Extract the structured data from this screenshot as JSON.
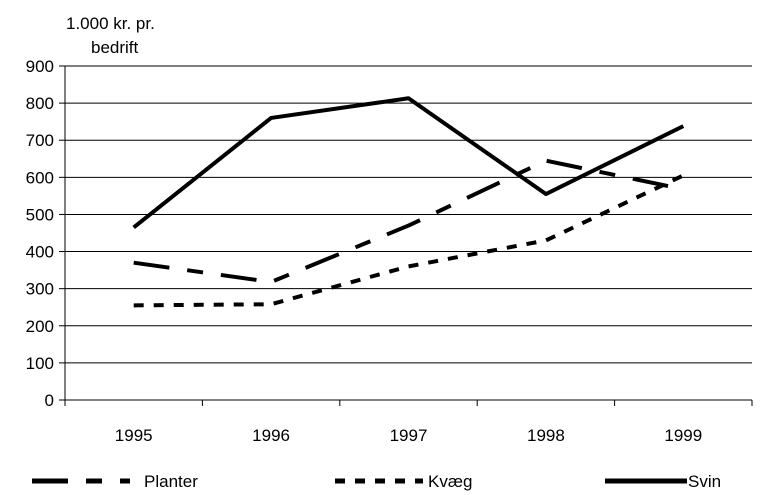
{
  "chart_data": {
    "type": "line",
    "ylabel_lines": [
      "1.000 kr. pr.",
      "bedrift"
    ],
    "xlabel": "",
    "categories": [
      "1995",
      "1996",
      "1997",
      "1998",
      "1999"
    ],
    "ylim": [
      0,
      900
    ],
    "yticks": [
      0,
      100,
      200,
      300,
      400,
      500,
      600,
      700,
      800,
      900
    ],
    "grid": true,
    "legend_position": "bottom",
    "series": [
      {
        "name": "Planter",
        "style": "dashed",
        "color": "#000000",
        "values": [
          370,
          318,
          470,
          645,
          568
        ]
      },
      {
        "name": "Kvæg",
        "style": "dotted",
        "color": "#000000",
        "values": [
          255,
          258,
          360,
          430,
          605
        ]
      },
      {
        "name": "Svin",
        "style": "solid",
        "color": "#000000",
        "values": [
          465,
          760,
          813,
          555,
          738
        ]
      }
    ]
  }
}
